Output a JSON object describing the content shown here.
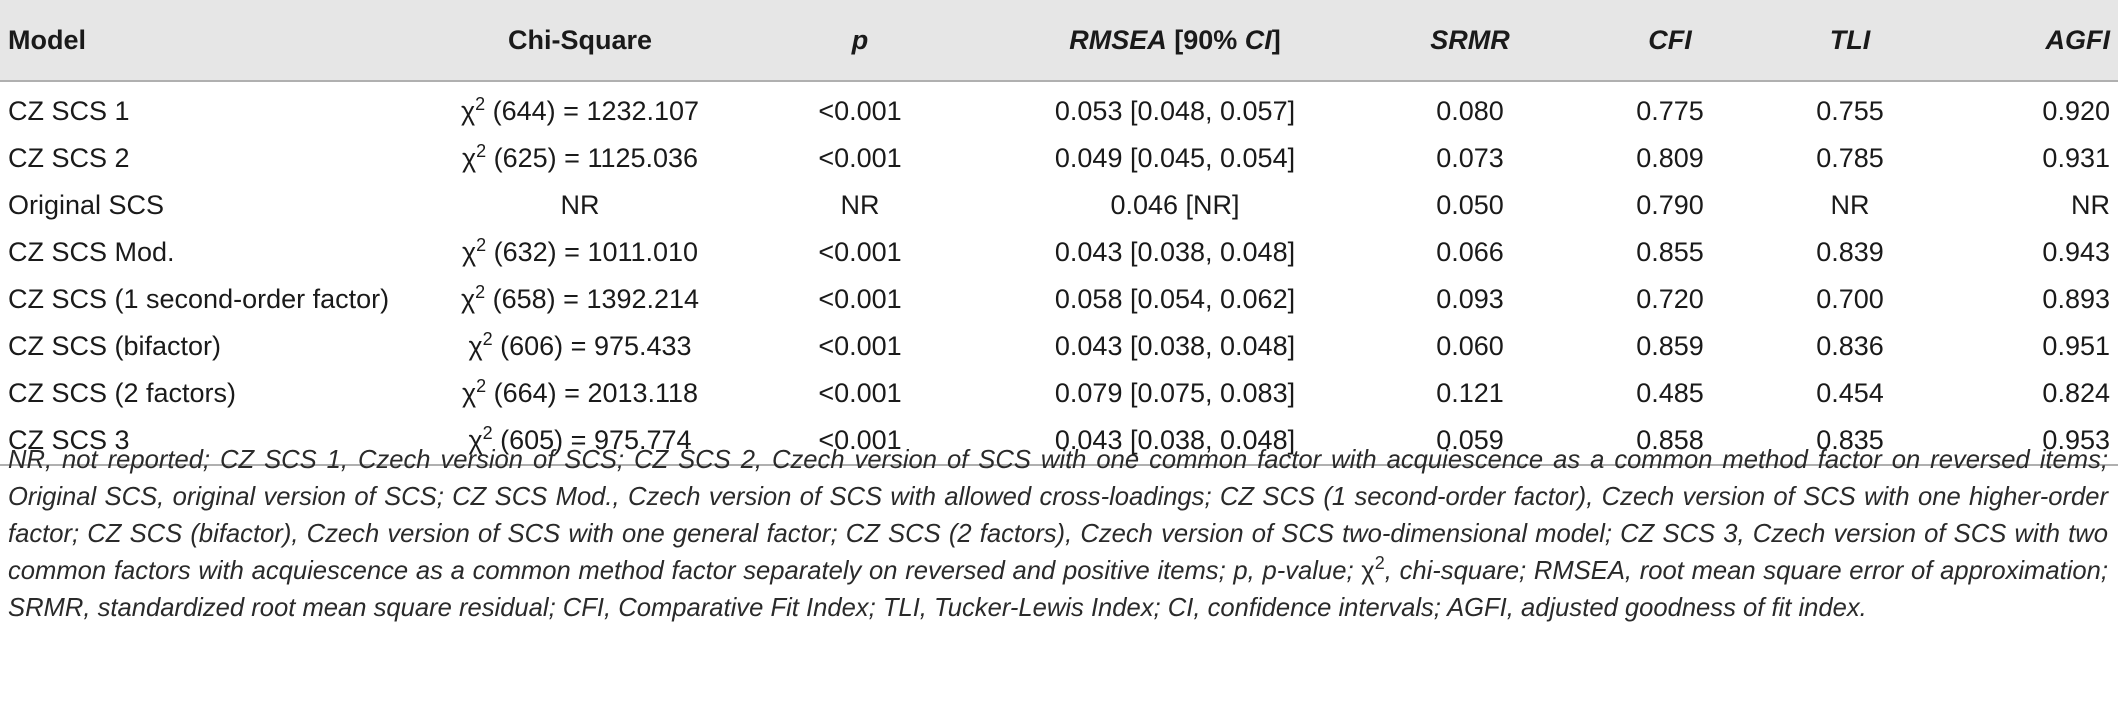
{
  "table": {
    "headers": {
      "model": "Model",
      "chi_square": "Chi-Square",
      "p": "p",
      "rmsea_a": "RMSEA",
      "rmsea_b": " [90% ",
      "rmsea_c": "CI",
      "rmsea_d": "]",
      "srmr": "SRMR",
      "cfi": "CFI",
      "tli": "TLI",
      "agfi": "AGFI"
    },
    "chi_symbol": "χ",
    "chi_sup": "2",
    "rows": [
      {
        "model": "CZ SCS 1",
        "chi_rest": " (644) = 1232.107",
        "p": "<0.001",
        "rmsea": "0.053 [0.048, 0.057]",
        "srmr": "0.080",
        "cfi": "0.775",
        "tli": "0.755",
        "agfi": "0.920"
      },
      {
        "model": "CZ SCS 2",
        "chi_rest": " (625) = 1125.036",
        "p": "<0.001",
        "rmsea": "0.049 [0.045, 0.054]",
        "srmr": "0.073",
        "cfi": "0.809",
        "tli": "0.785",
        "agfi": "0.931"
      },
      {
        "model": "Original SCS",
        "chi_plain": "NR",
        "p": "NR",
        "rmsea": "0.046 [NR]",
        "srmr": "0.050",
        "cfi": "0.790",
        "tli": "NR",
        "agfi": "NR"
      },
      {
        "model": "CZ SCS Mod.",
        "chi_rest": " (632) = 1011.010",
        "p": "<0.001",
        "rmsea": "0.043 [0.038, 0.048]",
        "srmr": "0.066",
        "cfi": "0.855",
        "tli": "0.839",
        "agfi": "0.943"
      },
      {
        "model": "CZ SCS (1 second-order factor)",
        "chi_rest": " (658) = 1392.214",
        "p": "<0.001",
        "rmsea": "0.058 [0.054, 0.062]",
        "srmr": "0.093",
        "cfi": "0.720",
        "tli": "0.700",
        "agfi": "0.893"
      },
      {
        "model": "CZ SCS (bifactor)",
        "chi_rest": " (606) = 975.433",
        "p": "<0.001",
        "rmsea": "0.043 [0.038, 0.048]",
        "srmr": "0.060",
        "cfi": "0.859",
        "tli": "0.836",
        "agfi": "0.951"
      },
      {
        "model": "CZ SCS (2 factors)",
        "chi_rest": " (664) = 2013.118",
        "p": "<0.001",
        "rmsea": "0.079 [0.075, 0.083]",
        "srmr": "0.121",
        "cfi": "0.485",
        "tli": "0.454",
        "agfi": "0.824"
      },
      {
        "model": "CZ SCS 3",
        "chi_rest": " (605) = 975.774",
        "p": "<0.001",
        "rmsea": "0.043 [0.038, 0.048]",
        "srmr": "0.059",
        "cfi": "0.858",
        "tli": "0.835",
        "agfi": "0.953"
      }
    ]
  },
  "footnote": {
    "part1": "NR, not reported; CZ SCS 1, Czech version of SCS; CZ SCS 2, Czech version of SCS with one common factor with acquiescence as a common method factor on reversed items; Original SCS, original version of SCS; CZ SCS Mod., Czech version of SCS with allowed cross-loadings; CZ SCS (1 second-order factor), Czech version of SCS with one higher-order factor; CZ SCS (bifactor), Czech version of SCS with one general factor; CZ SCS (2 factors), Czech version of SCS two-dimensional model; CZ SCS 3, Czech version of SCS with two common factors with acquiescence as a common method factor separately on reversed and positive items; p, p-value; ",
    "chi_symbol": "χ",
    "chi_sup": "2",
    "part2": ", chi-square; RMSEA, root mean square error of approximation; SRMR, standardized root mean square residual; CFI, Comparative Fit Index; TLI, Tucker-Lewis Index; CI, confidence intervals; AGFI, adjusted goodness of fit index."
  }
}
